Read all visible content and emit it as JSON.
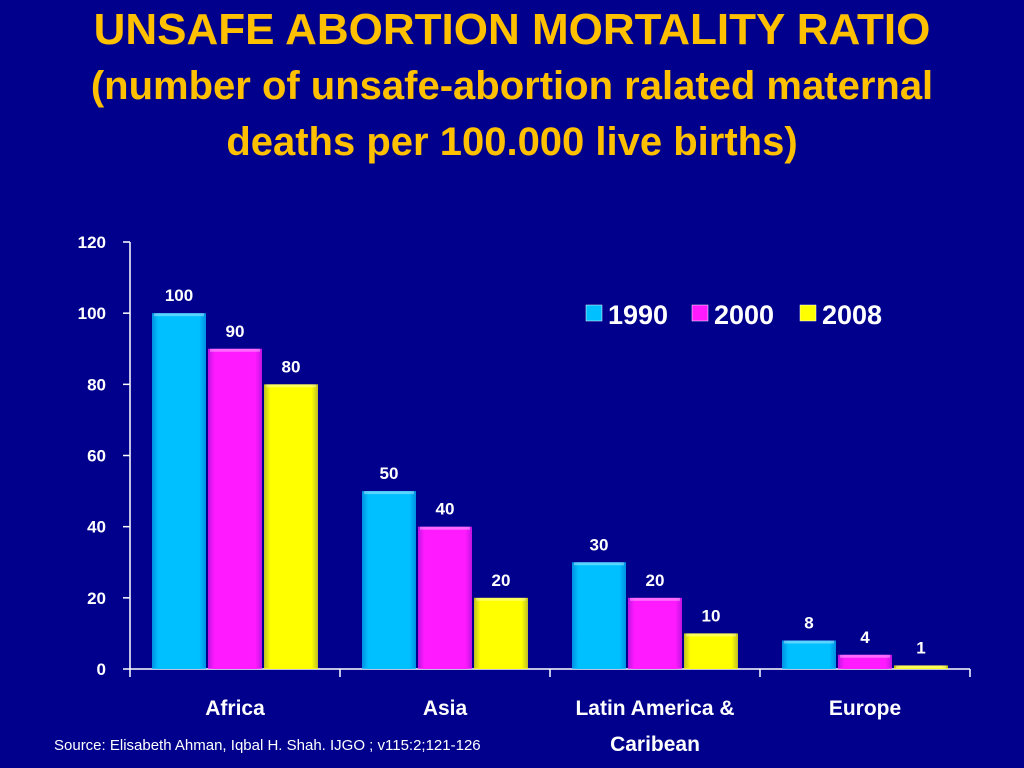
{
  "title": {
    "line1": "UNSAFE ABORTION MORTALITY RATIO",
    "line2": "(number of unsafe-abortion ralated maternal",
    "line3": "deaths per 100.000 live births)"
  },
  "source": "Source: Elisabeth Ahman, Iqbal H. Shah. IJGO ; v115:2;121-126",
  "colors": {
    "background": "#00008c",
    "title": "#ffc000",
    "text": "#ffffff",
    "series": [
      "#00c0ff",
      "#ff1aff",
      "#ffff00"
    ]
  },
  "chart_data": {
    "type": "bar",
    "categories": [
      "Africa",
      "Asia",
      "Latin America & Caribean",
      "Europe"
    ],
    "category_lines": [
      [
        "Africa"
      ],
      [
        "Asia"
      ],
      [
        "Latin America &",
        "Caribean"
      ],
      [
        "Europe"
      ]
    ],
    "series": [
      {
        "name": "1990",
        "values": [
          100,
          50,
          30,
          8
        ]
      },
      {
        "name": "2000",
        "values": [
          90,
          40,
          20,
          4
        ]
      },
      {
        "name": "2008",
        "values": [
          80,
          20,
          10,
          1
        ]
      }
    ],
    "ylim": [
      0,
      120
    ],
    "yticks": [
      0,
      20,
      40,
      60,
      80,
      100,
      120
    ],
    "xlabel": "",
    "ylabel": "",
    "grid": false,
    "legend": "top-right",
    "data_labels": true
  }
}
